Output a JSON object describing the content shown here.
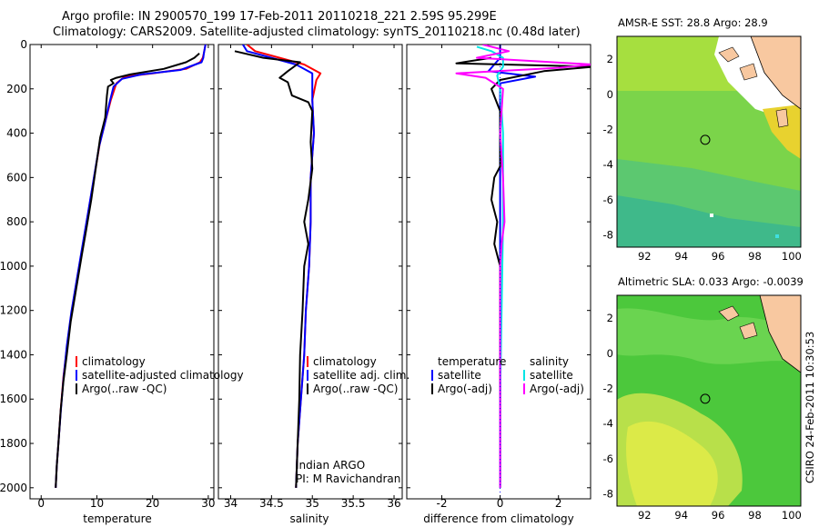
{
  "header": {
    "line1": "Argo profile: IN 2900570_199 17-Feb-2011 20110218_221 2.59S 95.299E",
    "line2": "Climatology: CARS2009. Satellite-adjusted climatology: synTS_20110218.nc (0.48d later)"
  },
  "side_credit": "CSIRO 24-Feb-2011 10:30:53",
  "colors": {
    "climatology": "#ff0000",
    "satellite": "#0000ff",
    "argo": "#000000",
    "salinity_satellite": "#00e5e5",
    "salinity_argo": "#ff00ff",
    "land": "#f8c8a0"
  },
  "chart_data": [
    {
      "type": "line",
      "xlabel": "temperature",
      "xlim": [
        -2,
        31
      ],
      "ylim": [
        2050,
        0
      ],
      "xticks": [
        0,
        10,
        20,
        30
      ],
      "yticks": [
        0,
        200,
        400,
        600,
        800,
        1000,
        1200,
        1400,
        1600,
        1800,
        2000
      ],
      "legend": [
        "climatology",
        "satellite-adjusted climatology",
        "Argo(..raw -QC)"
      ],
      "series": [
        {
          "name": "climatology",
          "color": "#ff0000",
          "points": [
            [
              29.5,
              0
            ],
            [
              29.2,
              40
            ],
            [
              29,
              60
            ],
            [
              28.5,
              80
            ],
            [
              26,
              110
            ],
            [
              20,
              130
            ],
            [
              15,
              145
            ],
            [
              13.5,
              175
            ],
            [
              12.5,
              250
            ],
            [
              11.5,
              350
            ],
            [
              10.5,
              450
            ],
            [
              9.5,
              600
            ],
            [
              8.5,
              750
            ],
            [
              7.5,
              900
            ],
            [
              6.5,
              1050
            ],
            [
              5.5,
              1200
            ],
            [
              4.7,
              1350
            ],
            [
              4,
              1500
            ],
            [
              3.5,
              1650
            ],
            [
              3.1,
              1800
            ],
            [
              2.8,
              1900
            ],
            [
              2.6,
              2000
            ]
          ]
        },
        {
          "name": "satellite-adjusted climatology",
          "color": "#0000ff",
          "points": [
            [
              29.5,
              0
            ],
            [
              29.2,
              40
            ],
            [
              29.1,
              60
            ],
            [
              28.8,
              80
            ],
            [
              25,
              115
            ],
            [
              18,
              135
            ],
            [
              14.5,
              155
            ],
            [
              13,
              190
            ],
            [
              12.3,
              260
            ],
            [
              11.4,
              360
            ],
            [
              10.4,
              460
            ],
            [
              9.4,
              610
            ],
            [
              8.4,
              760
            ],
            [
              7.4,
              910
            ],
            [
              6.4,
              1060
            ],
            [
              5.4,
              1210
            ],
            [
              4.6,
              1360
            ],
            [
              4,
              1510
            ],
            [
              3.5,
              1660
            ],
            [
              3.1,
              1800
            ],
            [
              2.8,
              1900
            ],
            [
              2.6,
              2000
            ]
          ]
        },
        {
          "name": "Argo(..raw -QC)",
          "color": "#000000",
          "points": [
            [
              28.4,
              40
            ],
            [
              27.5,
              60
            ],
            [
              26,
              80
            ],
            [
              22,
              110
            ],
            [
              16,
              135
            ],
            [
              13.5,
              150
            ],
            [
              12.5,
              160
            ],
            [
              13,
              175
            ],
            [
              12,
              190
            ],
            [
              11.8,
              230
            ],
            [
              11.5,
              330
            ],
            [
              10.6,
              420
            ],
            [
              9.8,
              560
            ],
            [
              9,
              700
            ],
            [
              8.2,
              820
            ],
            [
              7.3,
              950
            ],
            [
              6.3,
              1100
            ],
            [
              5.3,
              1250
            ],
            [
              4.6,
              1400
            ],
            [
              4,
              1520
            ],
            [
              3.5,
              1650
            ],
            [
              3.1,
              1800
            ],
            [
              2.8,
              1900
            ],
            [
              2.6,
              2000
            ]
          ]
        }
      ]
    },
    {
      "type": "line",
      "xlabel": "salinity",
      "xlim": [
        33.85,
        36.1
      ],
      "ylim": [
        2050,
        0
      ],
      "xticks": [
        34,
        34.5,
        35,
        35.5,
        36
      ],
      "xticklabels": [
        "34",
        "34.5",
        "35",
        "35.5",
        "36"
      ],
      "legend": [
        "climatology",
        "satellite adj. clim.",
        "Argo(..raw -QC)"
      ],
      "annotation": [
        "Indian ARGO",
        "PI: M Ravichandran"
      ],
      "series": [
        {
          "name": "climatology",
          "color": "#ff0000",
          "points": [
            [
              34.2,
              0
            ],
            [
              34.3,
              30
            ],
            [
              34.6,
              60
            ],
            [
              34.9,
              90
            ],
            [
              35.1,
              130
            ],
            [
              35.05,
              160
            ],
            [
              35.0,
              250
            ],
            [
              35.02,
              400
            ],
            [
              34.98,
              600
            ],
            [
              34.98,
              800
            ],
            [
              34.96,
              1000
            ],
            [
              34.92,
              1200
            ],
            [
              34.9,
              1400
            ],
            [
              34.86,
              1600
            ],
            [
              34.82,
              1800
            ],
            [
              34.8,
              2000
            ]
          ]
        },
        {
          "name": "satellite adj. clim.",
          "color": "#0000ff",
          "points": [
            [
              34.15,
              0
            ],
            [
              34.2,
              30
            ],
            [
              34.5,
              60
            ],
            [
              34.8,
              90
            ],
            [
              35.0,
              130
            ],
            [
              35.0,
              160
            ],
            [
              35.0,
              250
            ],
            [
              35.02,
              400
            ],
            [
              34.98,
              600
            ],
            [
              34.98,
              800
            ],
            [
              34.96,
              1000
            ],
            [
              34.92,
              1200
            ],
            [
              34.9,
              1400
            ],
            [
              34.86,
              1600
            ],
            [
              34.82,
              1800
            ],
            [
              34.8,
              2000
            ]
          ]
        },
        {
          "name": "Argo(..raw -QC)",
          "color": "#000000",
          "points": [
            [
              34.05,
              30
            ],
            [
              34.4,
              60
            ],
            [
              34.85,
              80
            ],
            [
              34.7,
              120
            ],
            [
              34.6,
              150
            ],
            [
              34.7,
              170
            ],
            [
              34.75,
              230
            ],
            [
              34.95,
              260
            ],
            [
              35.0,
              300
            ],
            [
              34.98,
              440
            ],
            [
              35.0,
              560
            ],
            [
              34.95,
              700
            ],
            [
              34.9,
              800
            ],
            [
              34.95,
              900
            ],
            [
              34.9,
              1000
            ],
            [
              34.88,
              1200
            ],
            [
              34.85,
              1400
            ],
            [
              34.84,
              1600
            ],
            [
              34.82,
              1800
            ],
            [
              34.8,
              2000
            ]
          ]
        }
      ]
    },
    {
      "type": "line",
      "xlabel": "difference from climatology",
      "xlim": [
        -3.2,
        3.1
      ],
      "ylim": [
        2050,
        0
      ],
      "xticks": [
        -2,
        0,
        2
      ],
      "legend": [
        "temperature",
        "satellite",
        "Argo(-adj)",
        "salinity",
        "satellite",
        "Argo(-adj)"
      ],
      "series": [
        {
          "name": "temperature satellite",
          "color": "#0000ff",
          "points": [
            [
              0,
              0
            ],
            [
              0,
              60
            ],
            [
              -0.2,
              90
            ],
            [
              -0.4,
              120
            ],
            [
              1.2,
              145
            ],
            [
              0,
              175
            ],
            [
              0,
              400
            ],
            [
              0,
              800
            ],
            [
              0,
              1200
            ],
            [
              0,
              1600
            ],
            [
              0,
              2000
            ]
          ]
        },
        {
          "name": "temperature Argo(-adj)",
          "color": "#000000",
          "points": [
            [
              -0.3,
              60
            ],
            [
              -1.5,
              85
            ],
            [
              3.2,
              100
            ],
            [
              1.5,
              120
            ],
            [
              0,
              160
            ],
            [
              -0.3,
              200
            ],
            [
              0,
              300
            ],
            [
              0,
              550
            ],
            [
              -0.2,
              600
            ],
            [
              -0.3,
              700
            ],
            [
              -0.1,
              800
            ],
            [
              -0.2,
              900
            ],
            [
              0,
              1000
            ],
            [
              0,
              1400
            ],
            [
              0,
              2000
            ]
          ]
        },
        {
          "name": "salinity satellite",
          "color": "#00e5e5",
          "points": [
            [
              -0.8,
              10
            ],
            [
              -0.3,
              30
            ],
            [
              0.1,
              60
            ],
            [
              0.1,
              100
            ],
            [
              -0.1,
              140
            ],
            [
              0,
              200
            ],
            [
              0.1,
              400
            ],
            [
              0.1,
              800
            ],
            [
              0.05,
              1200
            ],
            [
              0,
              1600
            ],
            [
              0,
              2000
            ]
          ]
        },
        {
          "name": "salinity Argo(-adj)",
          "color": "#ff00ff",
          "points": [
            [
              -0.6,
              0
            ],
            [
              0.3,
              30
            ],
            [
              -0.8,
              60
            ],
            [
              3.2,
              90
            ],
            [
              2,
              105
            ],
            [
              -1.5,
              130
            ],
            [
              -0.5,
              150
            ],
            [
              0.1,
              200
            ],
            [
              0,
              400
            ],
            [
              0.1,
              600
            ],
            [
              0.15,
              800
            ],
            [
              0.05,
              900
            ],
            [
              0,
              1000
            ],
            [
              0,
              1400
            ],
            [
              0,
              2000
            ]
          ]
        }
      ]
    },
    {
      "type": "heatmap",
      "title": "AMSR-E SST: 28.8 Argo: 28.9",
      "xlim": [
        90.5,
        100.5
      ],
      "ylim": [
        -8.7,
        3.3
      ],
      "xticks": [
        92,
        94,
        96,
        98,
        100
      ],
      "yticks": [
        2,
        0,
        -2,
        -4,
        -6,
        -8
      ],
      "marker": [
        95.3,
        -2.59
      ]
    },
    {
      "type": "heatmap",
      "title": "Altimetric SLA: 0.033 Argo: -0.0039",
      "xlim": [
        90.5,
        100.5
      ],
      "ylim": [
        -8.7,
        3.3
      ],
      "xticks": [
        92,
        94,
        96,
        98,
        100
      ],
      "yticks": [
        2,
        0,
        -2,
        -4,
        -6,
        -8
      ],
      "marker": [
        95.3,
        -2.59
      ]
    }
  ]
}
